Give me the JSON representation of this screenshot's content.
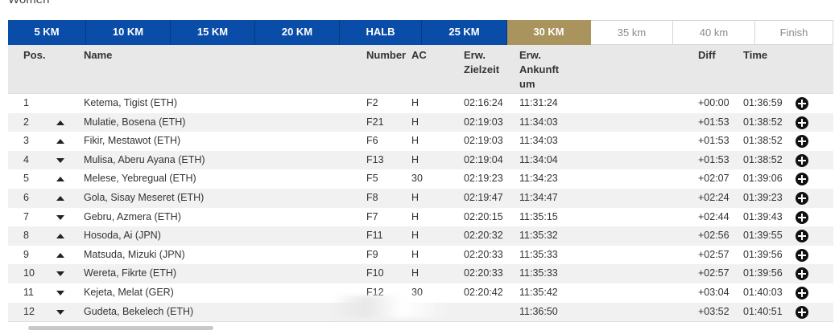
{
  "section_title": "Women",
  "tabs": [
    {
      "label": "5 KM",
      "state": "done"
    },
    {
      "label": "10 KM",
      "state": "done"
    },
    {
      "label": "15 KM",
      "state": "done"
    },
    {
      "label": "20 KM",
      "state": "done"
    },
    {
      "label": "HALB",
      "state": "done"
    },
    {
      "label": "25 KM",
      "state": "done"
    },
    {
      "label": "30 KM",
      "state": "active"
    },
    {
      "label": "35 km",
      "state": "future"
    },
    {
      "label": "40 km",
      "state": "future"
    },
    {
      "label": "Finish",
      "state": "future"
    }
  ],
  "headers": {
    "pos": "Pos.",
    "name": "Name",
    "number": "Number",
    "ac": "AC",
    "erw_zielzeit_1": "Erw.",
    "erw_zielzeit_2": "Zielzeit",
    "erw_ankunft_1": "Erw.",
    "erw_ankunft_2": "Ankunft",
    "erw_ankunft_3": "um",
    "diff": "Diff",
    "time": "Time"
  },
  "rows": [
    {
      "pos": "1",
      "trend": "none",
      "name": "Ketema, Tigist (ETH)",
      "number": "F2",
      "ac": "H",
      "zielzeit": "02:16:24",
      "ankunft": "11:31:24",
      "diff": "+00:00",
      "time": "01:36:59"
    },
    {
      "pos": "2",
      "trend": "up",
      "name": "Mulatie, Bosena (ETH)",
      "number": "F21",
      "ac": "H",
      "zielzeit": "02:19:03",
      "ankunft": "11:34:03",
      "diff": "+01:53",
      "time": "01:38:52"
    },
    {
      "pos": "3",
      "trend": "up",
      "name": "Fikir, Mestawot (ETH)",
      "number": "F6",
      "ac": "H",
      "zielzeit": "02:19:03",
      "ankunft": "11:34:03",
      "diff": "+01:53",
      "time": "01:38:52"
    },
    {
      "pos": "4",
      "trend": "down",
      "name": "Mulisa, Aberu Ayana (ETH)",
      "number": "F13",
      "ac": "H",
      "zielzeit": "02:19:04",
      "ankunft": "11:34:04",
      "diff": "+01:53",
      "time": "01:38:52"
    },
    {
      "pos": "5",
      "trend": "up",
      "name": "Melese, Yebregual (ETH)",
      "number": "F5",
      "ac": "30",
      "zielzeit": "02:19:23",
      "ankunft": "11:34:23",
      "diff": "+02:07",
      "time": "01:39:06"
    },
    {
      "pos": "6",
      "trend": "up",
      "name": "Gola, Sisay Meseret (ETH)",
      "number": "F8",
      "ac": "H",
      "zielzeit": "02:19:47",
      "ankunft": "11:34:47",
      "diff": "+02:24",
      "time": "01:39:23"
    },
    {
      "pos": "7",
      "trend": "down",
      "name": "Gebru, Azmera (ETH)",
      "number": "F7",
      "ac": "H",
      "zielzeit": "02:20:15",
      "ankunft": "11:35:15",
      "diff": "+02:44",
      "time": "01:39:43"
    },
    {
      "pos": "8",
      "trend": "up",
      "name": "Hosoda, Ai (JPN)",
      "number": "F11",
      "ac": "H",
      "zielzeit": "02:20:32",
      "ankunft": "11:35:32",
      "diff": "+02:56",
      "time": "01:39:55"
    },
    {
      "pos": "9",
      "trend": "up",
      "name": "Matsuda, Mizuki (JPN)",
      "number": "F9",
      "ac": "H",
      "zielzeit": "02:20:33",
      "ankunft": "11:35:33",
      "diff": "+02:57",
      "time": "01:39:56"
    },
    {
      "pos": "10",
      "trend": "down",
      "name": "Wereta, Fikrte (ETH)",
      "number": "F10",
      "ac": "H",
      "zielzeit": "02:20:33",
      "ankunft": "11:35:33",
      "diff": "+02:57",
      "time": "01:39:56"
    },
    {
      "pos": "11",
      "trend": "down",
      "name": "Kejeta, Melat (GER)",
      "number": "F12",
      "ac": "30",
      "zielzeit": "02:20:42",
      "ankunft": "11:35:42",
      "diff": "+03:04",
      "time": "01:40:03"
    },
    {
      "pos": "12",
      "trend": "down",
      "name": "Gudeta, Bekelech (ETH)",
      "number": "",
      "ac": "",
      "zielzeit": "",
      "ankunft": "11:36:50",
      "diff": "+03:52",
      "time": "01:40:51"
    }
  ]
}
